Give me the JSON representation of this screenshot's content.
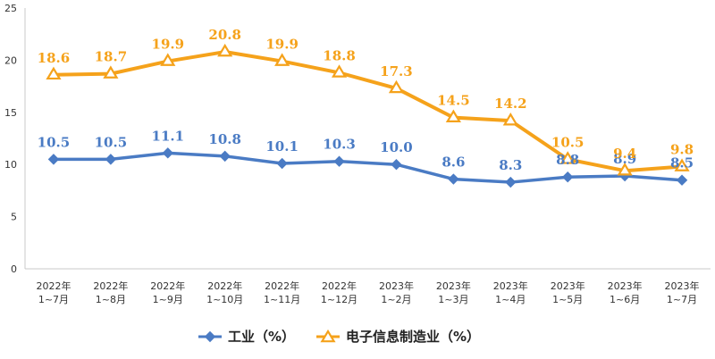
{
  "chart_data": {
    "type": "line",
    "categories": [
      [
        "2022年",
        "1~7月"
      ],
      [
        "2022年",
        "1~8月"
      ],
      [
        "2022年",
        "1~9月"
      ],
      [
        "2022年",
        "1~10月"
      ],
      [
        "2022年",
        "1~11月"
      ],
      [
        "2022年",
        "1~12月"
      ],
      [
        "2023年",
        "1~2月"
      ],
      [
        "2023年",
        "1~3月"
      ],
      [
        "2023年",
        "1~4月"
      ],
      [
        "2023年",
        "1~5月"
      ],
      [
        "2023年",
        "1~6月"
      ],
      [
        "2023年",
        "1~7月"
      ]
    ],
    "series": [
      {
        "name": "工业（%）",
        "color": "#4a7bc4",
        "marker": "diamond",
        "values": [
          10.5,
          10.5,
          11.1,
          10.8,
          10.1,
          10.3,
          10.0,
          8.6,
          8.3,
          8.8,
          8.9,
          8.5
        ],
        "labels": [
          "10.5",
          "10.5",
          "11.1",
          "10.8",
          "10.1",
          "10.3",
          "10.0",
          "8.6",
          "8.3",
          "8.8",
          "8.9",
          "8.5"
        ]
      },
      {
        "name": "电子信息制造业（%）",
        "color": "#f5a21b",
        "marker": "triangle",
        "values": [
          18.6,
          18.7,
          19.9,
          20.8,
          19.9,
          18.8,
          17.3,
          14.5,
          14.2,
          10.5,
          9.4,
          9.8
        ],
        "labels": [
          "18.6",
          "18.7",
          "19.9",
          "20.8",
          "19.9",
          "18.8",
          "17.3",
          "14.5",
          "14.2",
          "10.5",
          "9.4",
          "9.8"
        ]
      }
    ],
    "yticks": [
      "0",
      "5",
      "10",
      "15",
      "20",
      "25"
    ],
    "ylim": [
      0,
      25
    ],
    "grid": false,
    "legend": "bottom-center"
  }
}
